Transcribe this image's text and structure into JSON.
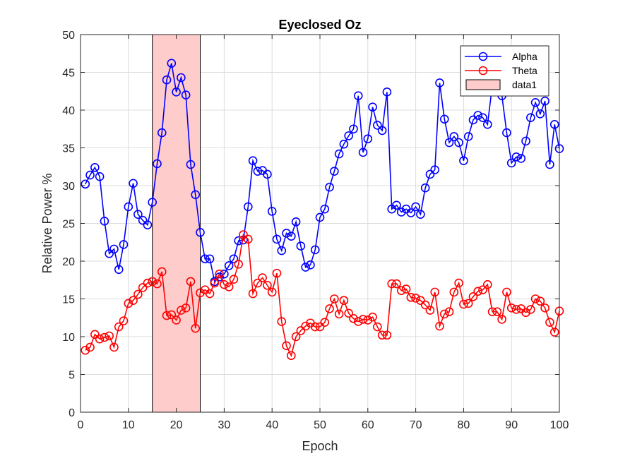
{
  "chart_data": {
    "type": "line",
    "title": "Eyeclosed Oz",
    "xlabel": "Epoch",
    "ylabel": "Relative Power %",
    "xlim": [
      0,
      100
    ],
    "ylim": [
      0,
      50
    ],
    "xticks": [
      0,
      10,
      20,
      30,
      40,
      50,
      60,
      70,
      80,
      90,
      100
    ],
    "yticks": [
      0,
      5,
      10,
      15,
      20,
      25,
      30,
      35,
      40,
      45,
      50
    ],
    "grid": true,
    "legend_position": "top-right",
    "x": [
      1,
      2,
      3,
      4,
      5,
      6,
      7,
      8,
      9,
      10,
      11,
      12,
      13,
      14,
      15,
      16,
      17,
      18,
      19,
      20,
      21,
      22,
      23,
      24,
      25,
      26,
      27,
      28,
      29,
      30,
      31,
      32,
      33,
      34,
      35,
      36,
      37,
      38,
      39,
      40,
      41,
      42,
      43,
      44,
      45,
      46,
      47,
      48,
      49,
      50,
      51,
      52,
      53,
      54,
      55,
      56,
      57,
      58,
      59,
      60,
      61,
      62,
      63,
      64,
      65,
      66,
      67,
      68,
      69,
      70,
      71,
      72,
      73,
      74,
      75,
      76,
      77,
      78,
      79,
      80,
      81,
      82,
      83,
      84,
      85,
      86,
      87,
      88,
      89,
      90,
      91,
      92,
      93,
      94,
      95,
      96,
      97,
      98,
      99,
      100
    ],
    "series": [
      {
        "name": "Alpha",
        "color": "#0000ff",
        "values": [
          30.2,
          31.4,
          32.4,
          31.2,
          25.3,
          21.0,
          21.6,
          18.9,
          22.2,
          27.2,
          30.3,
          26.2,
          25.4,
          24.8,
          27.8,
          32.9,
          37.0,
          44.0,
          46.2,
          42.4,
          44.3,
          42.0,
          32.8,
          28.8,
          23.8,
          20.3,
          20.3,
          17.3,
          17.9,
          18.3,
          19.4,
          20.3,
          22.7,
          22.8,
          27.2,
          33.3,
          31.9,
          32.0,
          31.5,
          26.6,
          22.9,
          21.4,
          23.7,
          23.3,
          25.2,
          22.0,
          19.2,
          19.5,
          21.5,
          25.8,
          26.9,
          29.8,
          31.9,
          34.2,
          35.5,
          36.6,
          37.5,
          41.9,
          34.4,
          36.2,
          40.4,
          38.0,
          37.3,
          42.4,
          26.9,
          27.4,
          26.5,
          26.9,
          26.4,
          27.2,
          26.2,
          29.7,
          31.5,
          32.1,
          43.6,
          38.8,
          35.7,
          36.5,
          35.7,
          33.3,
          36.5,
          38.7,
          39.3,
          39.0,
          38.1,
          43.3,
          44.0,
          41.9,
          37.0,
          33.0,
          33.8,
          33.6,
          35.9,
          39.0,
          41.0,
          39.5,
          41.2,
          32.8,
          38.1,
          34.9
        ]
      },
      {
        "name": "Theta",
        "color": "#ff0000",
        "values": [
          8.2,
          8.6,
          10.3,
          9.7,
          9.9,
          10.1,
          8.6,
          11.3,
          12.1,
          14.4,
          14.8,
          15.6,
          16.5,
          17.1,
          17.3,
          17.0,
          18.6,
          12.8,
          12.9,
          12.2,
          13.5,
          13.8,
          17.3,
          11.1,
          15.8,
          16.2,
          15.7,
          17.1,
          18.3,
          16.9,
          16.6,
          17.6,
          19.6,
          23.5,
          22.9,
          15.7,
          17.1,
          17.8,
          16.8,
          15.9,
          18.4,
          12.0,
          8.8,
          7.5,
          10.0,
          10.8,
          11.4,
          11.8,
          11.3,
          11.3,
          11.9,
          13.7,
          15.0,
          13.0,
          14.8,
          13.1,
          12.4,
          12.0,
          12.3,
          12.2,
          12.6,
          11.3,
          10.2,
          10.2,
          17.0,
          17.0,
          16.1,
          16.3,
          15.2,
          15.1,
          14.8,
          14.2,
          13.5,
          15.9,
          11.4,
          13.0,
          13.3,
          15.9,
          17.1,
          14.3,
          14.4,
          15.3,
          16.0,
          16.2,
          16.9,
          13.3,
          13.3,
          12.3,
          15.9,
          13.8,
          13.6,
          13.7,
          13.2,
          13.6,
          15.0,
          14.7,
          13.8,
          11.9,
          10.6,
          13.4
        ]
      }
    ],
    "shaded_region": {
      "name": "data1",
      "x_range": [
        15,
        25
      ],
      "y_range": [
        0,
        50
      ],
      "color": "#ffcccc"
    },
    "legend": [
      "Alpha",
      "Theta",
      "data1"
    ]
  }
}
